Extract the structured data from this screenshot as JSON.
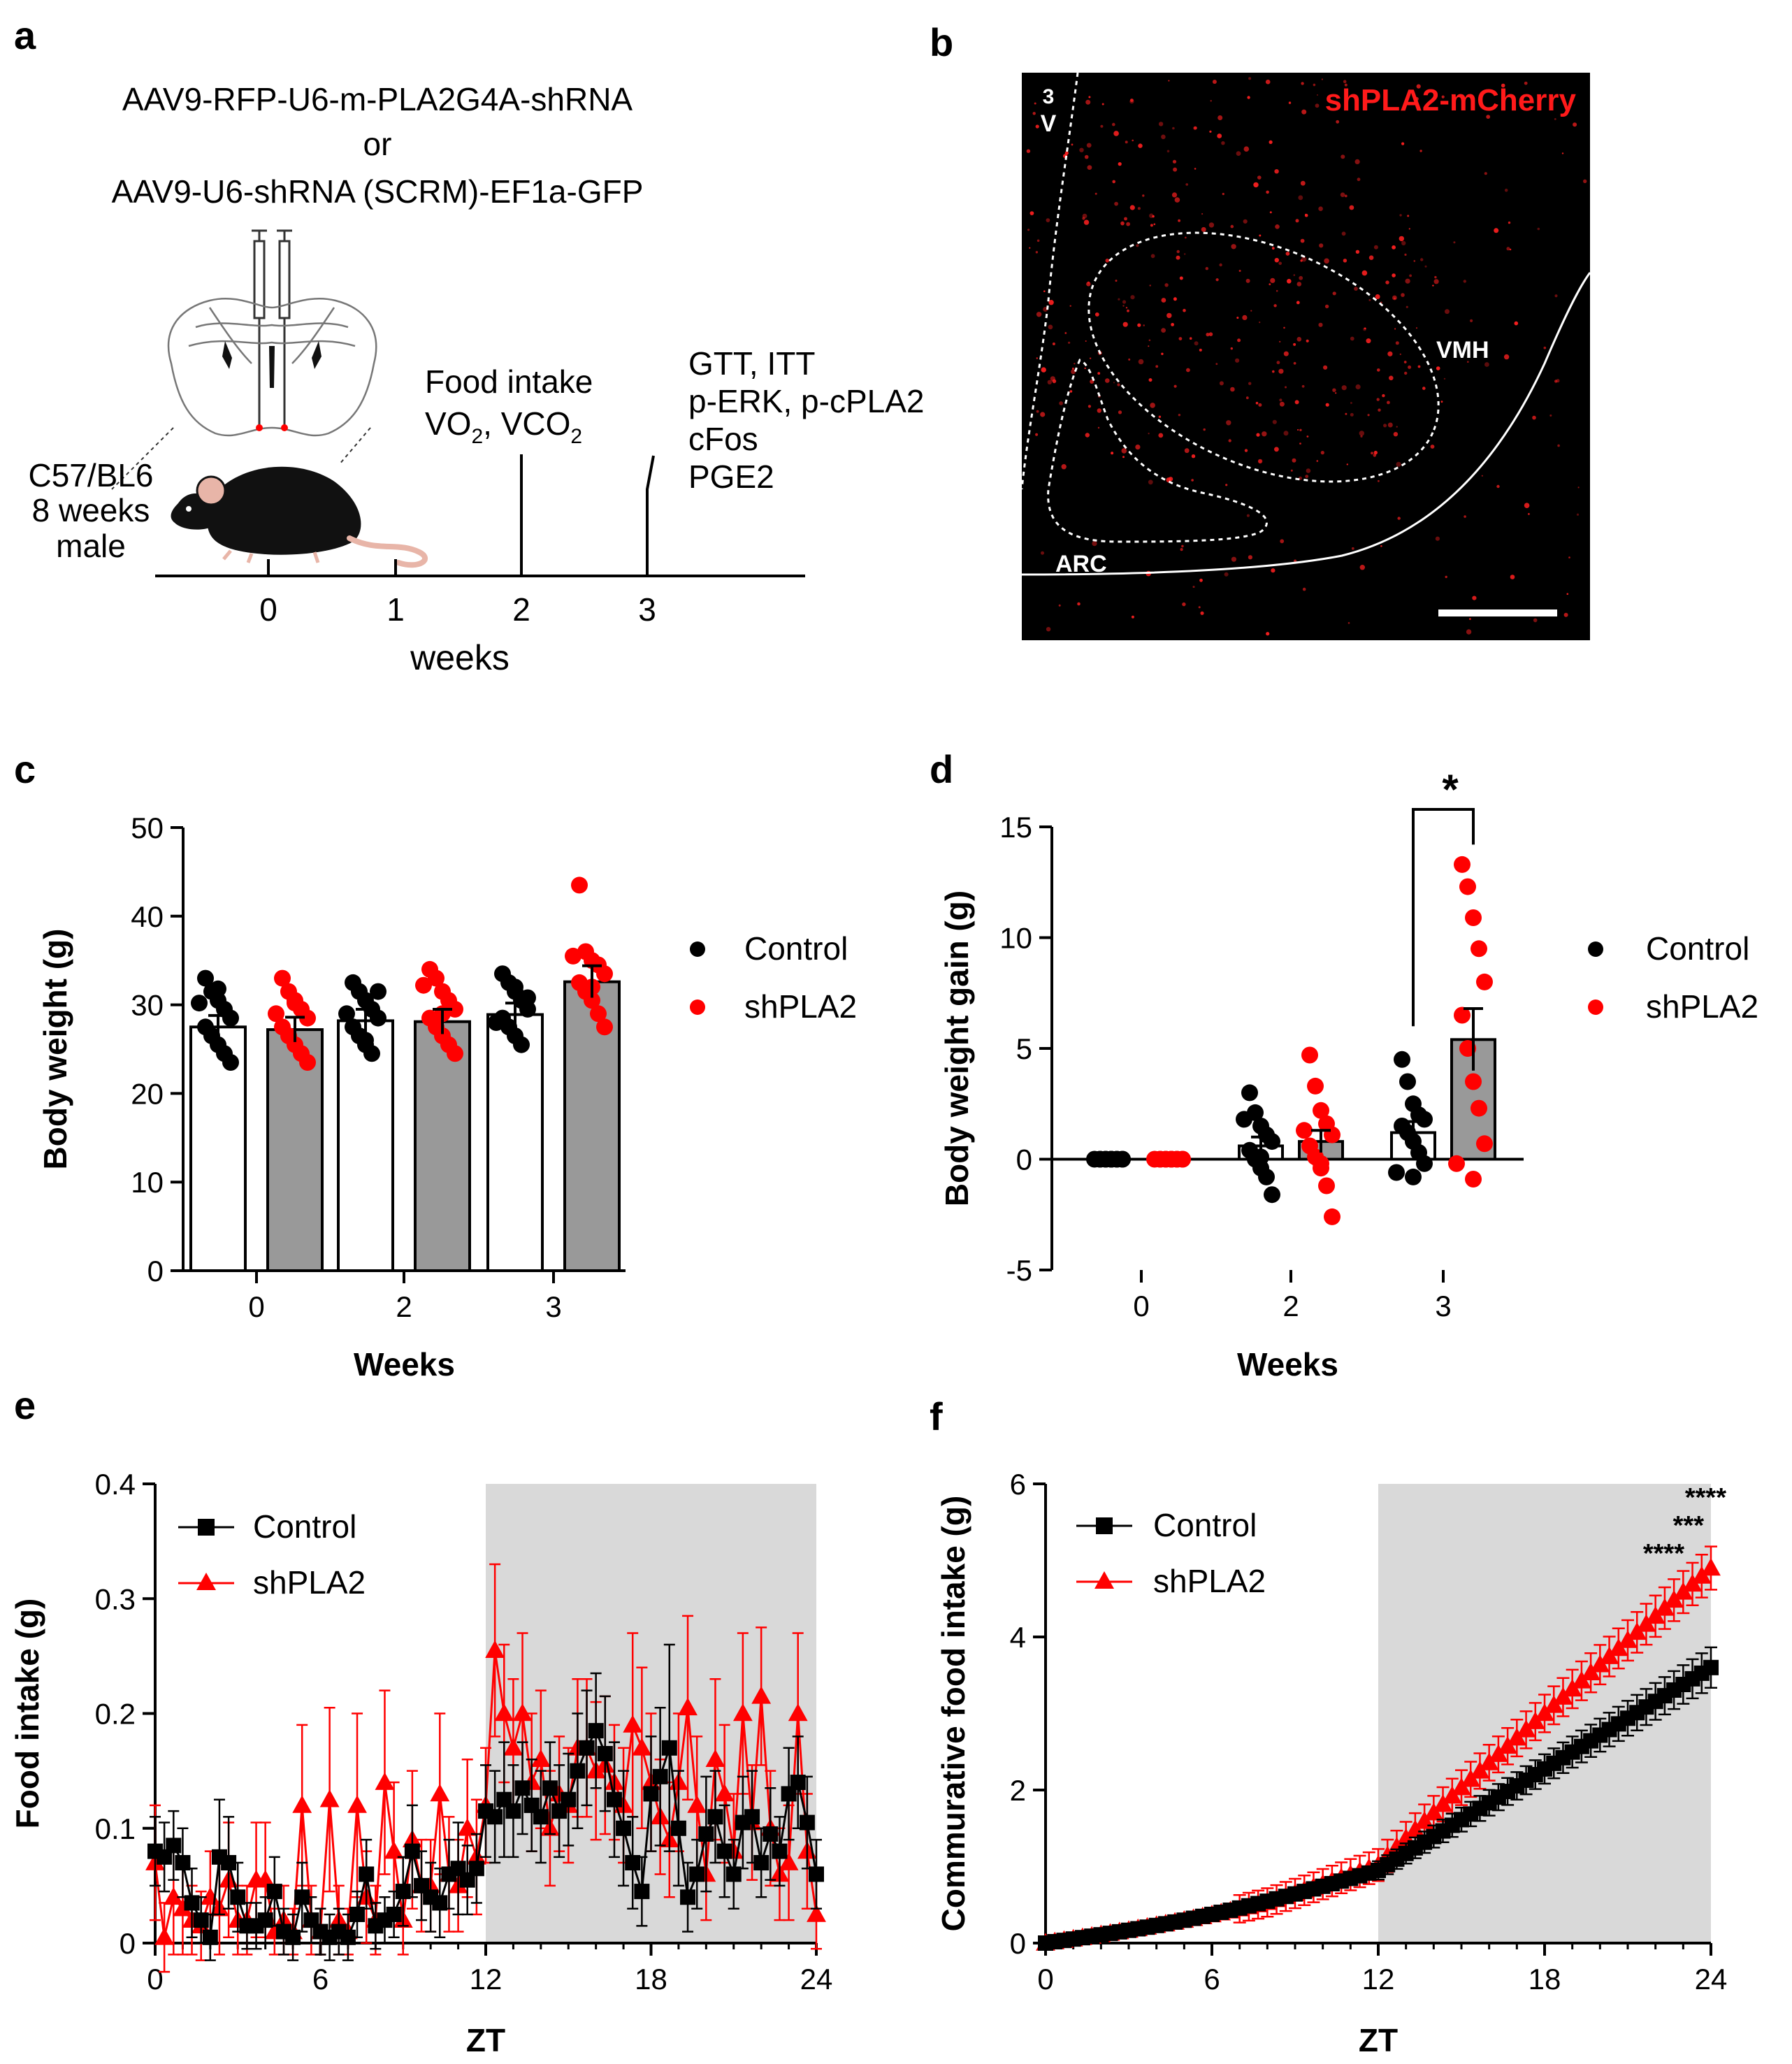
{
  "colors": {
    "control": "#000000",
    "shpla2": "#ff0000",
    "shaded": "#d9d9d9",
    "micro_bg": "#000000",
    "micro_text": "#ffffff",
    "micro_label": "#ff1a1a",
    "bar_gray": "#999999"
  },
  "panel_a": {
    "letter": "a",
    "virus_line1": "AAV9-RFP-U6-m-PLA2G4A-shRNA",
    "virus_or": "or",
    "virus_line2": "AAV9-U6-shRNA (SCRM)-EF1a-GFP",
    "mouse_line1": "C57/BL6",
    "mouse_line2": "8 weeks",
    "mouse_line3": "male",
    "event_week2_line1": "Food intake",
    "event_week2_line2": "VO",
    "event_week2_sub1": "2",
    "event_week2_mid": ", VCO",
    "event_week2_sub2": "2",
    "event_week3_lines": [
      "GTT, ITT",
      "p-ERK, p-cPLA2",
      "cFos",
      "PGE2"
    ],
    "timeline_ticks": [
      "0",
      "1",
      "2",
      "3"
    ],
    "timeline_label": "weeks"
  },
  "panel_b": {
    "letter": "b",
    "label": "shPLA2-mCherry",
    "region_3v_line1": "3",
    "region_3v_line2": "V",
    "region_vmh": "VMH",
    "region_arc": "ARC"
  },
  "panel_c": {
    "letter": "c",
    "legend": [
      "Control",
      "shPLA2"
    ]
  },
  "panel_d": {
    "letter": "d",
    "legend": [
      "Control",
      "shPLA2"
    ],
    "significance": "*"
  },
  "panel_e": {
    "letter": "e",
    "legend": [
      "Control",
      "shPLA2"
    ]
  },
  "panel_f": {
    "letter": "f",
    "legend": [
      "Control",
      "shPLA2"
    ],
    "stars": [
      "****",
      "***",
      "****"
    ]
  },
  "chart_data": [
    {
      "id": "c",
      "type": "bar",
      "title": "",
      "xlabel": "Weeks",
      "ylabel": "Body weight (g)",
      "categories": [
        "0",
        "2",
        "3"
      ],
      "ylim": [
        0,
        50
      ],
      "yticks": [
        0,
        10,
        20,
        30,
        40,
        50
      ],
      "series": [
        {
          "name": "Control",
          "means": [
            27.5,
            28.2,
            28.9
          ],
          "errors": [
            1.3,
            1.3,
            1.3
          ],
          "points": [
            [
              33,
              31.5,
              30.5,
              29.5,
              28.5,
              27.5,
              26.5,
              25.5,
              24.5,
              23.5,
              30.2,
              31.8
            ],
            [
              32.5,
              31.5,
              30.5,
              29.5,
              28.5,
              27.5,
              26.5,
              25.5,
              24.5,
              31.5,
              29,
              26
            ],
            [
              33.5,
              32.5,
              31.5,
              30.5,
              29.5,
              28.5,
              27.5,
              26.5,
              25.5,
              30.8,
              28,
              32
            ]
          ]
        },
        {
          "name": "shPLA2",
          "means": [
            27.2,
            28.1,
            32.6
          ],
          "errors": [
            1.4,
            1.4,
            1.8
          ],
          "points": [
            [
              33,
              31.5,
              30.5,
              29.5,
              28.5,
              27.5,
              26.5,
              25.5,
              24.5,
              23.5,
              29,
              30.2
            ],
            [
              34,
              33,
              31.5,
              30.5,
              29.5,
              28.5,
              27.5,
              26.5,
              25.5,
              24.5,
              32.2,
              29
            ],
            [
              43.5,
              36,
              35,
              34.5,
              33.5,
              32.5,
              31.5,
              30.5,
              29,
              27.5,
              35.5,
              32
            ]
          ]
        }
      ]
    },
    {
      "id": "d",
      "type": "bar",
      "title": "",
      "xlabel": "Weeks",
      "ylabel": "Body weight gain (g)",
      "categories": [
        "0",
        "2",
        "3"
      ],
      "ylim": [
        -5,
        15
      ],
      "yticks": [
        -5,
        0,
        5,
        10,
        15
      ],
      "series": [
        {
          "name": "Control",
          "means": [
            0,
            0.6,
            1.2
          ],
          "errors": [
            0,
            0.4,
            0.5
          ],
          "points": [
            [
              0,
              0,
              0,
              0,
              0,
              0,
              0,
              0,
              0,
              0,
              0,
              0
            ],
            [
              3,
              2.1,
              1.5,
              1.1,
              0.8,
              0.4,
              0,
              -0.4,
              -0.8,
              -1.6,
              1.8,
              0.1
            ],
            [
              4.5,
              3.5,
              2.5,
              2,
              1.8,
              1.5,
              1.2,
              0.8,
              0.3,
              -0.2,
              -0.6,
              -0.8
            ]
          ]
        },
        {
          "name": "shPLA2",
          "means": [
            0,
            0.8,
            5.4
          ],
          "errors": [
            0,
            0.5,
            1.4
          ],
          "points": [
            [
              0,
              0,
              0,
              0,
              0,
              0,
              0,
              0,
              0,
              0,
              0,
              0
            ],
            [
              4.7,
              3.3,
              2.2,
              1.6,
              1.1,
              0.6,
              0.1,
              -0.4,
              -1.2,
              -2.6,
              1.3,
              -0.2
            ],
            [
              13.3,
              12.3,
              10.9,
              9.5,
              8,
              6.5,
              5,
              3.5,
              2.3,
              0.7,
              -0.2,
              -0.9
            ]
          ]
        }
      ],
      "annotation": "*"
    },
    {
      "id": "e",
      "type": "line",
      "title": "",
      "xlabel": "ZT",
      "ylabel": "Food intake (g)",
      "xlim": [
        0,
        24
      ],
      "ylim": [
        0,
        0.4
      ],
      "xticks": [
        0,
        6,
        12,
        18,
        24
      ],
      "yticks": [
        0,
        0.1,
        0.2,
        0.3,
        0.4
      ],
      "dark_phase": [
        12,
        24
      ],
      "x": [
        0,
        0.333,
        0.667,
        1,
        1.333,
        1.667,
        2,
        2.333,
        2.667,
        3,
        3.333,
        3.667,
        4,
        4.333,
        4.667,
        5,
        5.333,
        5.667,
        6,
        6.333,
        6.667,
        7,
        7.333,
        7.667,
        8,
        8.333,
        8.667,
        9,
        9.333,
        9.667,
        10,
        10.333,
        10.667,
        11,
        11.333,
        11.667,
        12,
        12.333,
        12.667,
        13,
        13.333,
        13.667,
        14,
        14.333,
        14.667,
        15,
        15.333,
        15.667,
        16,
        16.333,
        16.667,
        17,
        17.333,
        17.667,
        18,
        18.333,
        18.667,
        19,
        19.333,
        19.667,
        20,
        20.333,
        20.667,
        21,
        21.333,
        21.667,
        22,
        22.333,
        22.667,
        23,
        23.333,
        23.667,
        24
      ],
      "series": [
        {
          "name": "Control",
          "values": [
            0.08,
            0.075,
            0.085,
            0.07,
            0.035,
            0.02,
            0.005,
            0.075,
            0.07,
            0.04,
            0.015,
            0.015,
            0.02,
            0.045,
            0.01,
            0.005,
            0.04,
            0.02,
            0.01,
            0.005,
            0.01,
            0.005,
            0.025,
            0.06,
            0.015,
            0.02,
            0.025,
            0.045,
            0.08,
            0.05,
            0.04,
            0.035,
            0.06,
            0.065,
            0.055,
            0.065,
            0.115,
            0.11,
            0.125,
            0.115,
            0.135,
            0.12,
            0.11,
            0.135,
            0.115,
            0.125,
            0.15,
            0.17,
            0.185,
            0.165,
            0.125,
            0.1,
            0.07,
            0.045,
            0.13,
            0.145,
            0.17,
            0.1,
            0.04,
            0.06,
            0.095,
            0.11,
            0.08,
            0.06,
            0.105,
            0.11,
            0.07,
            0.095,
            0.08,
            0.13,
            0.14,
            0.105,
            0.06
          ],
          "errors": [
            0.03,
            0.03,
            0.03,
            0.03,
            0.03,
            0.02,
            0.02,
            0.05,
            0.04,
            0.03,
            0.02,
            0.02,
            0.02,
            0.03,
            0.02,
            0.02,
            0.03,
            0.02,
            0.02,
            0.02,
            0.02,
            0.02,
            0.02,
            0.03,
            0.02,
            0.02,
            0.02,
            0.03,
            0.04,
            0.03,
            0.03,
            0.03,
            0.03,
            0.04,
            0.03,
            0.03,
            0.04,
            0.04,
            0.05,
            0.04,
            0.04,
            0.04,
            0.04,
            0.04,
            0.04,
            0.04,
            0.05,
            0.05,
            0.05,
            0.05,
            0.05,
            0.05,
            0.04,
            0.03,
            0.05,
            0.06,
            0.09,
            0.05,
            0.03,
            0.03,
            0.05,
            0.04,
            0.04,
            0.03,
            0.04,
            0.04,
            0.03,
            0.04,
            0.03,
            0.04,
            0.04,
            0.04,
            0.03
          ]
        },
        {
          "name": "shPLA2",
          "values": [
            0.07,
            0.005,
            0.04,
            0.03,
            0.02,
            0.015,
            0.04,
            0.03,
            0.055,
            0.02,
            0.02,
            0.055,
            0.055,
            0.01,
            0.02,
            0.01,
            0.12,
            0.02,
            0.01,
            0.125,
            0.02,
            0.01,
            0.12,
            0.04,
            0.02,
            0.14,
            0.08,
            0.02,
            0.09,
            0.05,
            0.05,
            0.13,
            0.06,
            0.05,
            0.1,
            0.075,
            0.12,
            0.255,
            0.2,
            0.17,
            0.2,
            0.14,
            0.16,
            0.1,
            0.13,
            0.12,
            0.17,
            0.17,
            0.15,
            0.155,
            0.14,
            0.12,
            0.19,
            0.17,
            0.14,
            0.11,
            0.09,
            0.14,
            0.205,
            0.12,
            0.06,
            0.16,
            0.13,
            0.08,
            0.2,
            0.105,
            0.215,
            0.1,
            0.06,
            0.07,
            0.2,
            0.08,
            0.025
          ],
          "errors": [
            0.05,
            0.03,
            0.05,
            0.04,
            0.03,
            0.03,
            0.04,
            0.04,
            0.05,
            0.03,
            0.03,
            0.05,
            0.05,
            0.02,
            0.03,
            0.02,
            0.07,
            0.03,
            0.02,
            0.08,
            0.03,
            0.02,
            0.08,
            0.04,
            0.03,
            0.08,
            0.06,
            0.03,
            0.06,
            0.04,
            0.04,
            0.07,
            0.05,
            0.04,
            0.06,
            0.05,
            0.05,
            0.075,
            0.06,
            0.06,
            0.07,
            0.06,
            0.06,
            0.05,
            0.05,
            0.05,
            0.06,
            0.06,
            0.06,
            0.06,
            0.05,
            0.05,
            0.08,
            0.07,
            0.06,
            0.05,
            0.05,
            0.06,
            0.08,
            0.06,
            0.04,
            0.07,
            0.06,
            0.05,
            0.07,
            0.05,
            0.06,
            0.05,
            0.04,
            0.05,
            0.07,
            0.05,
            0.03
          ]
        }
      ]
    },
    {
      "id": "f",
      "type": "line",
      "title": "",
      "xlabel": "ZT",
      "ylabel": "Commurative food intake (g)",
      "xlim": [
        0,
        24
      ],
      "ylim": [
        0,
        6
      ],
      "xticks": [
        0,
        6,
        12,
        18,
        24
      ],
      "yticks": [
        0,
        2,
        4,
        6
      ],
      "dark_phase": [
        12,
        24
      ],
      "endpoints": {
        "Control": 3.6,
        "shPLA2": 4.9
      },
      "annotation": [
        "****",
        "***",
        "****"
      ]
    }
  ]
}
